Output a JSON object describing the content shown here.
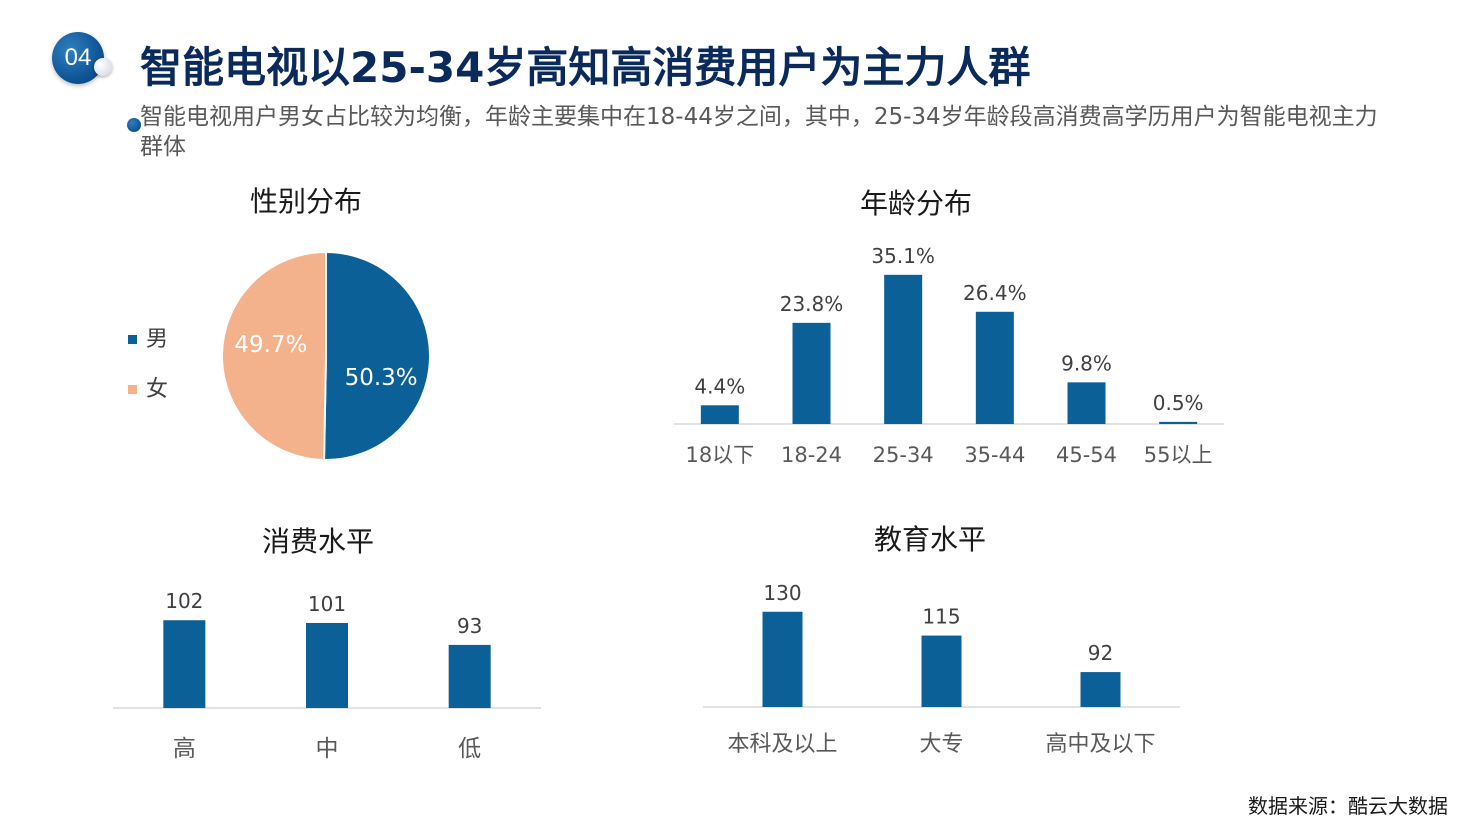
{
  "header": {
    "badge_number": "04",
    "title": "智能电视以25-34岁高知高消费用户为主力人群",
    "subtitle": "智能电视用户男女占比较为均衡，年龄主要集中在18-44岁之间，其中，25-34岁年龄段高消费高学历用户为智能电视主力群体"
  },
  "colors": {
    "primary": "#0b6097",
    "secondary": "#f3b28b",
    "title": "#0b2a5c",
    "axis": "#d9d9d9"
  },
  "footer": {
    "source": "数据来源：酷云大数据"
  },
  "chart_data": [
    {
      "type": "pie",
      "title": "性别分布",
      "categories": [
        "男",
        "女"
      ],
      "values": [
        50.3,
        49.7
      ],
      "labels": [
        "50.3%",
        "49.7%"
      ],
      "legend": "left"
    },
    {
      "type": "bar",
      "title": "年龄分布",
      "categories": [
        "18以下",
        "18-24",
        "25-34",
        "35-44",
        "45-54",
        "55以上"
      ],
      "values": [
        4.4,
        23.8,
        35.1,
        26.4,
        9.8,
        0.5
      ],
      "labels": [
        "4.4%",
        "23.8%",
        "35.1%",
        "26.4%",
        "9.8%",
        "0.5%"
      ],
      "ylim": [
        0,
        40
      ]
    },
    {
      "type": "bar",
      "title": "消费水平",
      "categories": [
        "高",
        "中",
        "低"
      ],
      "values": [
        102,
        101,
        93
      ],
      "labels": [
        "102",
        "101",
        "93"
      ],
      "ylim": [
        70,
        105
      ]
    },
    {
      "type": "bar",
      "title": "教育水平",
      "categories": [
        "本科及以上",
        "大专",
        "高中及以下"
      ],
      "values": [
        130,
        115,
        92
      ],
      "labels": [
        "130",
        "115",
        "92"
      ],
      "ylim": [
        70,
        133
      ]
    }
  ]
}
